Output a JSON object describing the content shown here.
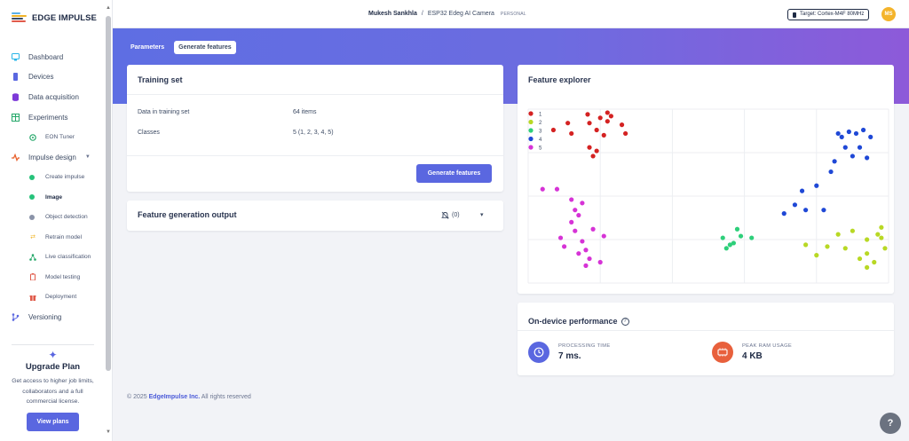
{
  "app": {
    "logo_text": "EDGE IMPULSE"
  },
  "sidebar": {
    "items": [
      {
        "label": "Dashboard"
      },
      {
        "label": "Devices"
      },
      {
        "label": "Data acquisition"
      },
      {
        "label": "Experiments"
      },
      {
        "label": "EON Tuner"
      },
      {
        "label": "Impulse design"
      },
      {
        "label": "Create impulse"
      },
      {
        "label": "Image"
      },
      {
        "label": "Object detection"
      },
      {
        "label": "Retrain model"
      },
      {
        "label": "Live classification"
      },
      {
        "label": "Model testing"
      },
      {
        "label": "Deployment"
      },
      {
        "label": "Versioning"
      }
    ],
    "upgrade": {
      "title": "Upgrade Plan",
      "description": "Get access to higher job limits, collaborators and a full commercial license.",
      "button": "View plans"
    }
  },
  "topbar": {
    "user": "Mukesh Sankhla",
    "separator": "/",
    "project": "ESP32 Edeg AI Camera",
    "tag": "PERSONAL",
    "target": "Target: Cortex-M4F 80MHz",
    "avatar_initials": "MS"
  },
  "tabs": [
    {
      "label": "Parameters",
      "active": false
    },
    {
      "label": "Generate features",
      "active": true
    }
  ],
  "training_set": {
    "title": "Training set",
    "rows": [
      {
        "key": "Data in training set",
        "value": "64 items"
      },
      {
        "key": "Classes",
        "value": "5 (1, 2, 3, 4, 5)"
      }
    ],
    "button": "Generate features"
  },
  "feature_output": {
    "title": "Feature generation output",
    "notification_count": "(0)"
  },
  "feature_explorer": {
    "title": "Feature explorer",
    "legend": [
      "1",
      "2",
      "3",
      "4",
      "5"
    ],
    "colors": [
      "#d42222",
      "#b8d824",
      "#2ecf7a",
      "#1f48d6",
      "#d633d6"
    ]
  },
  "chart_data": {
    "type": "scatter",
    "title": "",
    "xlabel": "",
    "ylabel": "",
    "grid": true,
    "legend_position": "top-left",
    "xlim": [
      0,
      100
    ],
    "ylim": [
      0,
      100
    ],
    "series": [
      {
        "name": "1",
        "points": [
          [
            16.5,
            97
          ],
          [
            19,
            88
          ],
          [
            17,
            92
          ],
          [
            22,
            93
          ],
          [
            22,
            98
          ],
          [
            26,
            91
          ],
          [
            27,
            86
          ],
          [
            21,
            85
          ],
          [
            7,
            88
          ],
          [
            11,
            92
          ],
          [
            12,
            86
          ],
          [
            17,
            78
          ],
          [
            18,
            73
          ],
          [
            19,
            76
          ],
          [
            23,
            96
          ],
          [
            20,
            95
          ]
        ]
      },
      {
        "name": "2",
        "points": [
          [
            77,
            22
          ],
          [
            80,
            16
          ],
          [
            83,
            21
          ],
          [
            86,
            28
          ],
          [
            88,
            20
          ],
          [
            90,
            30
          ],
          [
            92,
            14
          ],
          [
            94,
            25
          ],
          [
            94,
            17
          ],
          [
            94,
            9
          ],
          [
            96,
            12
          ],
          [
            98,
            26
          ],
          [
            98,
            32
          ],
          [
            99,
            20
          ],
          [
            97,
            28
          ]
        ]
      },
      {
        "name": "3",
        "points": [
          [
            54,
            26
          ],
          [
            56,
            22
          ],
          [
            55,
            20
          ],
          [
            58,
            31
          ],
          [
            59,
            27
          ],
          [
            62,
            26
          ],
          [
            57,
            23
          ]
        ]
      },
      {
        "name": "4",
        "points": [
          [
            71,
            40
          ],
          [
            74,
            45
          ],
          [
            76,
            53
          ],
          [
            77,
            42
          ],
          [
            80,
            56
          ],
          [
            82,
            42
          ],
          [
            84,
            64
          ],
          [
            85,
            70
          ],
          [
            87,
            84
          ],
          [
            88,
            78
          ],
          [
            89,
            87
          ],
          [
            90,
            73
          ],
          [
            92,
            78
          ],
          [
            93,
            88
          ],
          [
            94,
            72
          ],
          [
            95,
            84
          ],
          [
            86,
            86
          ],
          [
            91,
            86
          ]
        ]
      },
      {
        "name": "5",
        "points": [
          [
            4,
            54
          ],
          [
            8,
            54
          ],
          [
            12,
            48
          ],
          [
            13,
            42
          ],
          [
            12,
            35
          ],
          [
            9,
            26
          ],
          [
            10,
            21
          ],
          [
            13,
            30
          ],
          [
            15,
            24
          ],
          [
            16,
            19
          ],
          [
            17,
            14
          ],
          [
            20,
            12
          ],
          [
            21,
            27
          ],
          [
            15,
            46
          ],
          [
            14,
            39
          ],
          [
            18,
            31
          ],
          [
            16,
            10
          ],
          [
            14,
            17
          ]
        ]
      }
    ]
  },
  "performance": {
    "title": "On-device performance",
    "processing_label": "PROCESSING TIME",
    "processing_value": "7 ms.",
    "ram_label": "PEAK RAM USAGE",
    "ram_value": "4 KB"
  },
  "footer": {
    "prefix": "© 2025 ",
    "link": "EdgeImpulse Inc.",
    "suffix": " All rights reserved"
  }
}
